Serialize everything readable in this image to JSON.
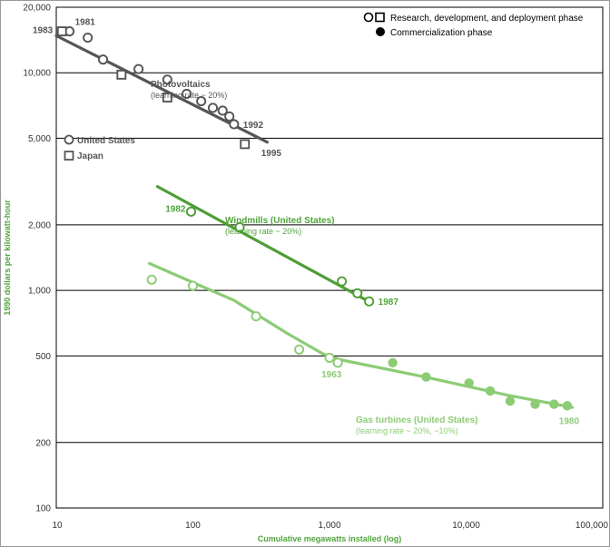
{
  "chart_data": {
    "type": "scatter",
    "title": "",
    "xlabel": "Cumulative megawatts installed (log)",
    "ylabel": "1990 dollars per kilowatt-hour",
    "x_scale": "log",
    "y_scale": "log",
    "xlim": [
      10,
      100000
    ],
    "ylim": [
      100,
      20000
    ],
    "x_ticks": [
      {
        "value": 10,
        "label": "10"
      },
      {
        "value": 100,
        "label": "100"
      },
      {
        "value": 1000,
        "label": "1,000"
      },
      {
        "value": 10000,
        "label": "10,000"
      },
      {
        "value": 100000,
        "label": "100,000"
      }
    ],
    "y_ticks": [
      {
        "value": 100,
        "label": "100"
      },
      {
        "value": 200,
        "label": "200"
      },
      {
        "value": 500,
        "label": "500"
      },
      {
        "value": 1000,
        "label": "1,000"
      },
      {
        "value": 2000,
        "label": "2,000"
      },
      {
        "value": 5000,
        "label": "5,000"
      },
      {
        "value": 10000,
        "label": "10,000"
      },
      {
        "value": 20000,
        "label": "20,000"
      }
    ],
    "legend": {
      "placement": "top-right",
      "entries": [
        {
          "label": "Research, development, and deployment phase",
          "marker": "open-circle-and-square"
        },
        {
          "label": "Commercialization phase",
          "marker": "filled-circle"
        }
      ],
      "inline_entries": [
        {
          "label": "United States",
          "marker": "open-circle",
          "x": 11,
          "y": 6700
        },
        {
          "label": "Japan",
          "marker": "open-square",
          "x": 11,
          "y": 5500
        }
      ]
    },
    "colors": {
      "photovoltaics": "#555555",
      "windmills": "#4e9e35",
      "gas_turbines": "#8ccc74",
      "gridline": "#000000",
      "axis_text": "#333333",
      "label_green": "#4fa53a"
    },
    "series": [
      {
        "name": "Photovoltaics",
        "sublabel": "(learning rate ~ 20%)",
        "color": "#555555",
        "points_us": [
          {
            "x": 12.5,
            "y": 15500
          },
          {
            "x": 17,
            "y": 14500
          },
          {
            "x": 22,
            "y": 11500
          },
          {
            "x": 40,
            "y": 10400
          },
          {
            "x": 65,
            "y": 9300
          },
          {
            "x": 90,
            "y": 8000
          },
          {
            "x": 115,
            "y": 7400
          },
          {
            "x": 140,
            "y": 6900
          },
          {
            "x": 165,
            "y": 6700
          },
          {
            "x": 185,
            "y": 6300
          },
          {
            "x": 200,
            "y": 5800
          }
        ],
        "points_japan": [
          {
            "x": 11,
            "y": 15500
          },
          {
            "x": 30,
            "y": 9800
          },
          {
            "x": 65,
            "y": 7700
          },
          {
            "x": 240,
            "y": 4700
          }
        ],
        "trend": [
          [
            10,
            14800
          ],
          [
            350,
            4800
          ]
        ],
        "annotations": [
          {
            "text": "1981",
            "x": 12.5,
            "y": 15500
          },
          {
            "text": "1983",
            "x": 11,
            "y": 15500
          },
          {
            "text": "1992",
            "x": 200,
            "y": 5800
          },
          {
            "text": "1995",
            "x": 240,
            "y": 4700
          }
        ]
      },
      {
        "name": "Windmills (United States)",
        "sublabel": "(learning rate ~ 20%)",
        "color": "#4e9e35",
        "points": [
          {
            "x": 97,
            "y": 2300
          },
          {
            "x": 220,
            "y": 1950
          },
          {
            "x": 1230,
            "y": 1100
          },
          {
            "x": 1600,
            "y": 970
          },
          {
            "x": 1950,
            "y": 890
          }
        ],
        "trend": [
          [
            55,
            3000
          ],
          [
            2000,
            880
          ]
        ],
        "annotations": [
          {
            "text": "1982",
            "x": 97,
            "y": 2300
          },
          {
            "text": "1987",
            "x": 1950,
            "y": 890
          }
        ]
      },
      {
        "name": "Gas turbines (United States)",
        "sublabel": "(learning rate ~ 20%, ~10%)",
        "color": "#8ccc74",
        "points_rd": [
          {
            "x": 50,
            "y": 1120
          },
          {
            "x": 100,
            "y": 1050
          },
          {
            "x": 290,
            "y": 760
          },
          {
            "x": 600,
            "y": 535
          },
          {
            "x": 1000,
            "y": 490
          },
          {
            "x": 1150,
            "y": 465
          }
        ],
        "points_commercial": [
          {
            "x": 2900,
            "y": 465
          },
          {
            "x": 5100,
            "y": 400
          },
          {
            "x": 10500,
            "y": 375
          },
          {
            "x": 15000,
            "y": 345
          },
          {
            "x": 21000,
            "y": 310
          },
          {
            "x": 32000,
            "y": 300
          },
          {
            "x": 44000,
            "y": 300
          },
          {
            "x": 55000,
            "y": 295
          }
        ],
        "trend": [
          [
            48,
            1330
          ],
          [
            200,
            900
          ],
          [
            500,
            630
          ],
          [
            900,
            510
          ],
          [
            1200,
            480
          ],
          [
            5000,
            400
          ],
          [
            20000,
            330
          ],
          [
            60000,
            290
          ]
        ],
        "annotations": [
          {
            "text": "1963",
            "x": 1150,
            "y": 465
          },
          {
            "text": "1980",
            "x": 55000,
            "y": 295
          }
        ]
      }
    ]
  }
}
